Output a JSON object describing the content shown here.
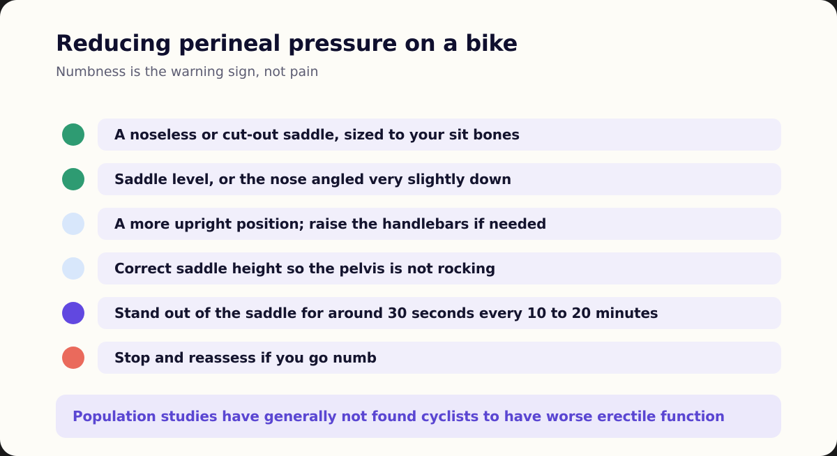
{
  "header": {
    "title": "Reducing perineal pressure on a bike",
    "subtitle": "Numbness is the warning sign, not pain"
  },
  "items": [
    {
      "label": "A noseless or cut-out saddle, sized to your sit bones",
      "color": "#2e9b72"
    },
    {
      "label": "Saddle level, or the nose angled very slightly down",
      "color": "#2e9b72"
    },
    {
      "label": "A more upright position; raise the handlebars if needed",
      "color": "#d8e7fb"
    },
    {
      "label": "Correct saddle height so the pelvis is not rocking",
      "color": "#d8e7fb"
    },
    {
      "label": "Stand out of the saddle for around 30 seconds every 10 to 20 minutes",
      "color": "#6148e0"
    },
    {
      "label": "Stop and reassess if you go numb",
      "color": "#ea6a5c"
    }
  ],
  "callout": {
    "text": "Population studies have generally not found cyclists to have worse erectile function"
  }
}
